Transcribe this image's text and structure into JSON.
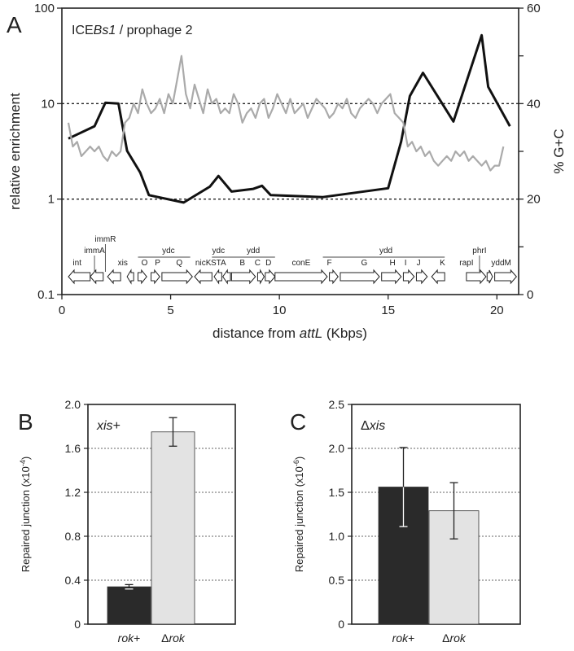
{
  "colors": {
    "enrichment": "#111111",
    "gc": "#aaaaaa",
    "bar_dark": "#2a2a2a",
    "bar_light": "#e3e3e3",
    "axis": "#222222"
  },
  "chart_data": [
    {
      "panel": "A",
      "type": "line",
      "title_prefix": "ICE",
      "title_italic": "Bs1",
      "title_suffix": " / prophage 2",
      "xlabel_prefix": "distance from ",
      "xlabel_italic": "attL",
      "xlabel_suffix": " (Kbps)",
      "ylabel": "relative enrichment",
      "y2label": "% G+C",
      "xlim": [
        0,
        21
      ],
      "xticks": [
        0,
        5,
        10,
        15,
        20
      ],
      "ylim": [
        0.1,
        100
      ],
      "y_scale": "log",
      "yticks": [
        0.1,
        1,
        10,
        100
      ],
      "yticklabels": [
        "0.1",
        "1",
        "10",
        "100"
      ],
      "y2lim": [
        0,
        60
      ],
      "y2ticks": [
        0,
        10,
        20,
        30,
        40,
        50,
        60
      ],
      "y2ticklabels": [
        "0",
        "",
        "20",
        "",
        "40",
        "",
        "60"
      ],
      "reference_lines": [
        1,
        10
      ],
      "series": [
        {
          "axis": "left",
          "x": [
            0.3,
            1.5,
            2.0,
            2.6,
            3.0,
            3.6,
            4.0,
            5.6,
            6.8,
            7.2,
            7.8,
            8.8,
            9.2,
            9.6,
            12.0,
            15.0,
            15.6,
            16.0,
            16.6,
            18.0,
            19.3,
            19.6,
            20.6
          ],
          "y": [
            4.3,
            5.8,
            10.2,
            10.0,
            3.2,
            1.9,
            1.1,
            0.92,
            1.35,
            1.75,
            1.2,
            1.28,
            1.38,
            1.1,
            1.05,
            1.3,
            4.0,
            12.0,
            21.0,
            6.5,
            52.0,
            15.0,
            5.8
          ]
        },
        {
          "axis": "right",
          "x": [
            0.3,
            0.5,
            0.7,
            0.9,
            1.1,
            1.3,
            1.5,
            1.7,
            1.9,
            2.1,
            2.3,
            2.5,
            2.7,
            2.9,
            3.1,
            3.3,
            3.5,
            3.7,
            3.9,
            4.1,
            4.3,
            4.5,
            4.7,
            4.9,
            5.1,
            5.3,
            5.5,
            5.7,
            5.9,
            6.1,
            6.3,
            6.5,
            6.7,
            6.9,
            7.1,
            7.3,
            7.5,
            7.7,
            7.9,
            8.1,
            8.3,
            8.5,
            8.7,
            8.9,
            9.1,
            9.3,
            9.5,
            9.7,
            9.9,
            10.1,
            10.3,
            10.5,
            10.7,
            10.9,
            11.1,
            11.3,
            11.5,
            11.7,
            11.9,
            12.1,
            12.3,
            12.5,
            12.7,
            12.9,
            13.1,
            13.3,
            13.5,
            13.7,
            13.9,
            14.1,
            14.3,
            14.5,
            14.7,
            14.9,
            15.1,
            15.3,
            15.5,
            15.7,
            15.9,
            16.1,
            16.3,
            16.5,
            16.7,
            16.9,
            17.1,
            17.3,
            17.5,
            17.7,
            17.9,
            18.1,
            18.3,
            18.5,
            18.7,
            18.9,
            19.1,
            19.3,
            19.5,
            19.7,
            19.9,
            20.1,
            20.3
          ],
          "y": [
            36,
            31,
            32,
            29,
            30,
            31,
            30,
            31,
            29,
            28,
            30,
            29,
            30,
            36,
            37,
            40,
            38,
            43,
            40,
            38,
            39,
            41,
            38,
            42,
            40,
            45,
            50,
            42,
            39,
            44,
            41,
            38,
            43,
            40,
            41,
            38,
            39,
            38,
            42,
            40,
            36,
            38,
            39,
            37,
            40,
            41,
            37,
            39,
            42,
            40,
            38,
            41,
            38,
            39,
            40,
            37,
            39,
            41,
            40,
            39,
            37,
            38,
            40,
            39,
            41,
            38,
            37,
            39,
            40,
            41,
            40,
            38,
            40,
            41,
            42,
            38,
            37,
            36,
            31,
            32,
            30,
            31,
            29,
            30,
            28,
            27,
            28,
            29,
            28,
            30,
            29,
            30,
            28,
            29,
            28,
            27,
            28,
            26,
            27,
            27,
            31
          ]
        }
      ],
      "gene_map": {
        "arrows": [
          {
            "s": 0.3,
            "e": 1.3,
            "d": "L",
            "label": "int"
          },
          {
            "s": 1.3,
            "e": 1.9,
            "d": "L",
            "label": ""
          },
          {
            "s": 2.1,
            "e": 2.7,
            "d": "L",
            "label": ""
          },
          {
            "s": 3.0,
            "e": 3.3,
            "d": "L",
            "label": ""
          },
          {
            "s": 3.5,
            "e": 3.9,
            "d": "R",
            "label": ""
          },
          {
            "s": 4.1,
            "e": 4.5,
            "d": "R",
            "label": ""
          },
          {
            "s": 4.6,
            "e": 6.0,
            "d": "R",
            "label": ""
          },
          {
            "s": 6.1,
            "e": 6.9,
            "d": "L",
            "label": ""
          },
          {
            "s": 7.0,
            "e": 7.35,
            "d": "L",
            "label": ""
          },
          {
            "s": 7.4,
            "e": 7.75,
            "d": "L",
            "label": ""
          },
          {
            "s": 7.8,
            "e": 8.9,
            "d": "R",
            "label": ""
          },
          {
            "s": 9.0,
            "e": 9.3,
            "d": "R",
            "label": ""
          },
          {
            "s": 9.35,
            "e": 9.8,
            "d": "R",
            "label": ""
          },
          {
            "s": 9.8,
            "e": 12.2,
            "d": "R",
            "label": ""
          },
          {
            "s": 12.3,
            "e": 12.7,
            "d": "R",
            "label": ""
          },
          {
            "s": 12.8,
            "e": 14.6,
            "d": "R",
            "label": ""
          },
          {
            "s": 14.7,
            "e": 15.6,
            "d": "R",
            "label": ""
          },
          {
            "s": 15.7,
            "e": 16.2,
            "d": "R",
            "label": ""
          },
          {
            "s": 16.3,
            "e": 16.8,
            "d": "R",
            "label": ""
          },
          {
            "s": 17.0,
            "e": 17.6,
            "d": "L",
            "label": ""
          },
          {
            "s": 18.6,
            "e": 19.5,
            "d": "R",
            "label": ""
          },
          {
            "s": 19.55,
            "e": 19.8,
            "d": "R",
            "label": ""
          },
          {
            "s": 19.9,
            "e": 20.9,
            "d": "R",
            "label": ""
          }
        ],
        "labels": [
          {
            "x": 0.7,
            "text": "int",
            "row": 0
          },
          {
            "x": 1.5,
            "text": "immA",
            "row": 1
          },
          {
            "x": 2.0,
            "text": "immR",
            "row": 2
          },
          {
            "x": 2.8,
            "text": "xis",
            "row": 0
          },
          {
            "x": 3.8,
            "text": "O",
            "row": 0
          },
          {
            "x": 4.4,
            "text": "P",
            "row": 0
          },
          {
            "x": 5.4,
            "text": "Q",
            "row": 0
          },
          {
            "x": 4.9,
            "text": "ydc",
            "row": 1
          },
          {
            "x": 6.5,
            "text": "nicK",
            "row": 0
          },
          {
            "x": 7.2,
            "text": "ydc",
            "row": 1
          },
          {
            "x": 7.2,
            "text": "STA",
            "row": 0
          },
          {
            "x": 8.3,
            "text": "B",
            "row": 0
          },
          {
            "x": 9.0,
            "text": "C",
            "row": 0
          },
          {
            "x": 9.5,
            "text": "D",
            "row": 0
          },
          {
            "x": 8.8,
            "text": "ydd",
            "row": 1
          },
          {
            "x": 11.0,
            "text": "conE",
            "row": 0
          },
          {
            "x": 12.3,
            "text": "F",
            "row": 0
          },
          {
            "x": 13.9,
            "text": "G",
            "row": 0
          },
          {
            "x": 14.9,
            "text": "ydd",
            "row": 1
          },
          {
            "x": 15.2,
            "text": "H",
            "row": 0
          },
          {
            "x": 15.8,
            "text": "I",
            "row": 0
          },
          {
            "x": 16.4,
            "text": "J",
            "row": 0
          },
          {
            "x": 17.5,
            "text": "K",
            "row": 0
          },
          {
            "x": 18.6,
            "text": "rapI",
            "row": 0
          },
          {
            "x": 19.2,
            "text": "phrI",
            "row": 1
          },
          {
            "x": 20.2,
            "text": "yddM",
            "row": 0
          }
        ],
        "brackets": [
          {
            "s": 3.5,
            "e": 5.9,
            "text_index": 7
          },
          {
            "s": 6.9,
            "e": 7.6,
            "text_index": 9
          },
          {
            "s": 7.6,
            "e": 9.8,
            "text_index": 14
          },
          {
            "s": 12.0,
            "e": 17.6,
            "text_index": 20
          }
        ]
      }
    },
    {
      "panel": "B",
      "type": "bar",
      "annotation_italic": "xis",
      "annotation_suffix": "+",
      "ylabel_prefix": "Repaired junction (x10",
      "ylabel_exp": "-4",
      "ylabel_suffix": ")",
      "categories": [
        {
          "italic": "rok",
          "rest": "+",
          "lead": ""
        },
        {
          "italic": "rok",
          "rest": "",
          "lead": "Δ"
        }
      ],
      "values": [
        0.34,
        1.75
      ],
      "errors": [
        0.02,
        0.13
      ],
      "ylim": [
        0,
        2.0
      ],
      "yticks": [
        "0",
        "0.4",
        "0.8",
        "1.2",
        "1.6",
        "2.0"
      ],
      "grid": true
    },
    {
      "panel": "C",
      "type": "bar",
      "annotation_lead": "Δ",
      "annotation_italic": "xis",
      "ylabel_prefix": "Repaired junction (x10",
      "ylabel_exp": "-6",
      "ylabel_suffix": ")",
      "categories": [
        {
          "italic": "rok",
          "rest": "+",
          "lead": ""
        },
        {
          "italic": "rok",
          "rest": "",
          "lead": "Δ"
        }
      ],
      "values": [
        1.56,
        1.29
      ],
      "errors": [
        0.45,
        0.32
      ],
      "ylim": [
        0,
        2.5
      ],
      "yticks": [
        "0",
        "0.5",
        "1.0",
        "1.5",
        "2.0",
        "2.5"
      ],
      "grid": true
    }
  ]
}
